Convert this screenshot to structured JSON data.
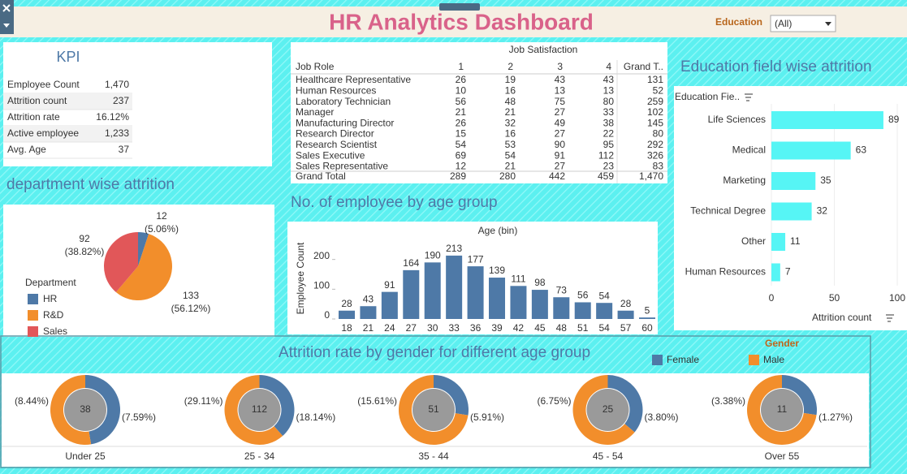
{
  "header": {
    "title": "HR Analytics Dashboard",
    "filter_label": "Education",
    "filter_value": "(All)"
  },
  "kpi": {
    "title": "KPI",
    "rows": [
      [
        "Employee Count",
        "1,470"
      ],
      [
        "Attrition count",
        "237"
      ],
      [
        "Attrition rate",
        "16.12%"
      ],
      [
        "Active employee",
        "1,233"
      ],
      [
        "Avg. Age",
        "37"
      ]
    ]
  },
  "job_satisfaction": {
    "title": "Job Satisfaction",
    "columns": [
      "Job Role",
      "1",
      "2",
      "3",
      "4",
      "Grand T.."
    ],
    "rows": [
      [
        "Healthcare Representative",
        26,
        19,
        43,
        43,
        131
      ],
      [
        "Human Resources",
        10,
        16,
        13,
        13,
        52
      ],
      [
        "Laboratory Technician",
        56,
        48,
        75,
        80,
        259
      ],
      [
        "Manager",
        21,
        21,
        27,
        33,
        102
      ],
      [
        "Manufacturing Director",
        26,
        32,
        49,
        38,
        145
      ],
      [
        "Research Director",
        15,
        16,
        27,
        22,
        80
      ],
      [
        "Research Scientist",
        54,
        53,
        90,
        95,
        292
      ],
      [
        "Sales Executive",
        69,
        54,
        91,
        112,
        326
      ],
      [
        "Sales Representative",
        12,
        21,
        27,
        23,
        83
      ]
    ],
    "total": [
      "Grand Total",
      289,
      280,
      442,
      459,
      "1,470"
    ]
  },
  "chart_data": [
    {
      "type": "bar",
      "horizontal": true,
      "title": "Education field wise attrition",
      "category_label": "Education Fie..",
      "x_label": "Attrition count",
      "categories": [
        "Life Sciences",
        "Medical",
        "Marketing",
        "Technical Degree",
        "Other",
        "Human Resources"
      ],
      "values": [
        89,
        63,
        35,
        32,
        11,
        7
      ],
      "color": "#56f5f5",
      "xlim": [
        0,
        100
      ],
      "xticks": [
        0,
        50,
        100
      ]
    },
    {
      "type": "pie",
      "title": "department wise attrition",
      "legend_title": "Department",
      "categories": [
        "HR",
        "R&D",
        "Sales"
      ],
      "values": [
        12,
        133,
        92
      ],
      "share_labels": [
        "(5.06%)",
        "(56.12%)",
        "(38.82%)"
      ],
      "colors": [
        "#4e79a7",
        "#f28e2b",
        "#e15759"
      ]
    },
    {
      "type": "bar",
      "title": "No. of employee by age group",
      "x_label": "Age (bin)",
      "y_label": "Employee Count",
      "categories": [
        18,
        21,
        24,
        27,
        30,
        33,
        36,
        39,
        42,
        45,
        48,
        51,
        54,
        57,
        60
      ],
      "values": [
        28,
        43,
        91,
        164,
        190,
        213,
        177,
        139,
        111,
        98,
        73,
        56,
        54,
        28,
        5
      ],
      "color": "#4e79a7",
      "ylim": [
        0,
        240
      ],
      "yticks": [
        0,
        100,
        200
      ]
    },
    {
      "type": "donut",
      "title": "Attrition rate by gender for different age group",
      "legend_title": "Gender",
      "categories": [
        "Under 25",
        "25 - 34",
        "35 - 44",
        "45 - 54",
        "Over 55"
      ],
      "totals": [
        38,
        112,
        51,
        25,
        11
      ],
      "series": [
        {
          "name": "Female",
          "color": "#4e79a7",
          "values": [
            7.59,
            18.14,
            5.91,
            3.8,
            1.27
          ],
          "value_labels": [
            "(7.59%)",
            "(18.14%)",
            "(5.91%)",
            "(3.80%)",
            "(1.27%)"
          ]
        },
        {
          "name": "Male",
          "color": "#f28e2b",
          "values": [
            8.44,
            29.11,
            15.61,
            6.75,
            3.38
          ],
          "value_labels": [
            "(8.44%)",
            "(29.11%)",
            "(15.61%)",
            "(6.75%)",
            "(3.38%)"
          ]
        }
      ]
    }
  ]
}
